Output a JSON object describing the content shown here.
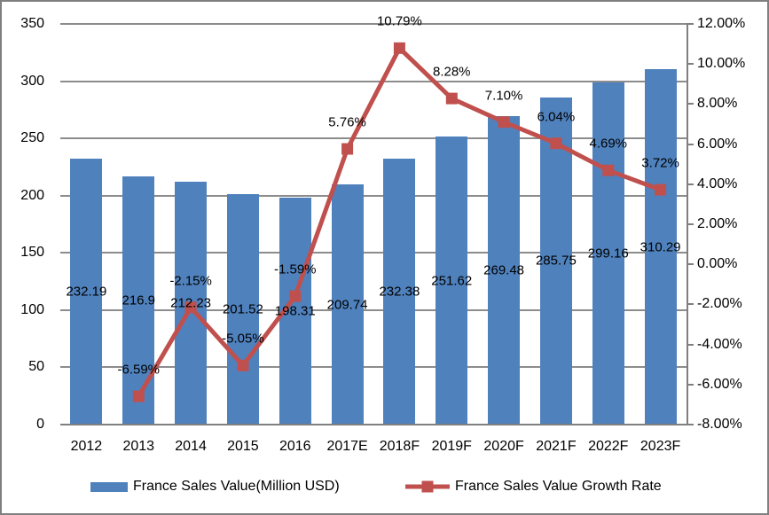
{
  "chart_data": {
    "type": "bar",
    "subtype": "bar-line-combo",
    "categories": [
      "2012",
      "2013",
      "2014",
      "2015",
      "2016",
      "2017E",
      "2018F",
      "2019F",
      "2020F",
      "2021F",
      "2022F",
      "2023F"
    ],
    "series": [
      {
        "name": "France Sales Value(Million USD)",
        "type": "bar",
        "axis": "left",
        "color": "#4f81bd",
        "values": [
          232.19,
          216.9,
          212.23,
          201.52,
          198.31,
          209.74,
          232.38,
          251.62,
          269.48,
          285.75,
          299.16,
          310.29
        ],
        "labels": [
          "232.19",
          "216.9",
          "212.23",
          "201.52",
          "198.31",
          "209.74",
          "232.38",
          "251.62",
          "269.48",
          "285.75",
          "299.16",
          "310.29"
        ]
      },
      {
        "name": "France Sales Value Growth Rate",
        "type": "line",
        "axis": "right",
        "color": "#c0504d",
        "values": [
          null,
          -6.59,
          -2.15,
          -5.05,
          -1.59,
          5.76,
          10.79,
          8.28,
          7.1,
          6.04,
          4.69,
          3.72
        ],
        "labels": [
          null,
          "-6.59%",
          "-2.15%",
          "-5.05%",
          "-1.59%",
          "5.76%",
          "10.79%",
          "8.28%",
          "7.10%",
          "6.04%",
          "4.69%",
          "3.72%"
        ]
      }
    ],
    "left_axis": {
      "min": 0,
      "max": 350,
      "step": 50,
      "ticks": [
        "350",
        "300",
        "250",
        "200",
        "150",
        "100",
        "50",
        "0"
      ]
    },
    "right_axis": {
      "min": -8,
      "max": 12,
      "step": 2,
      "ticks": [
        "12.00%",
        "10.00%",
        "8.00%",
        "6.00%",
        "4.00%",
        "2.00%",
        "0.00%",
        "-2.00%",
        "-4.00%",
        "-6.00%",
        "-8.00%"
      ]
    },
    "grid": true,
    "legend_position": "bottom",
    "colors": {
      "gridline": "#8c8c8c",
      "axis": "#7f7f7f",
      "text": "#000000"
    }
  }
}
